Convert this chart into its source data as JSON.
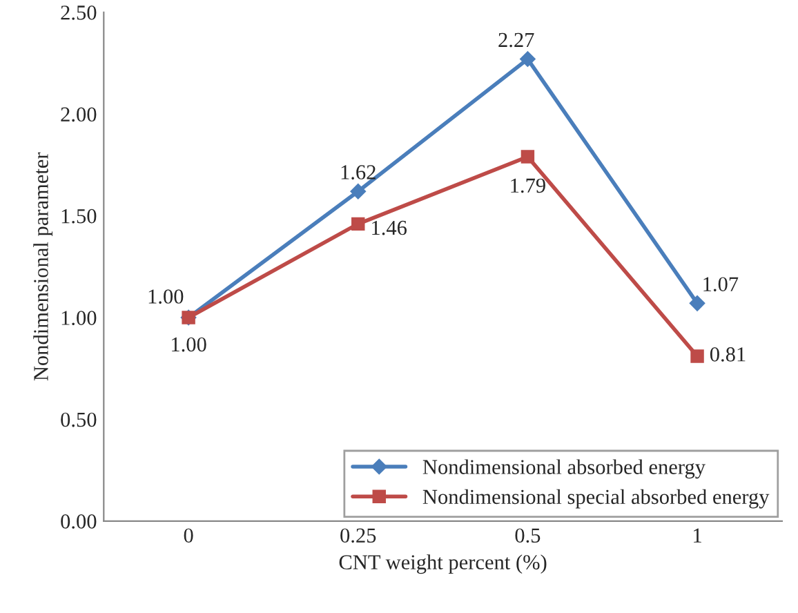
{
  "chart_data": {
    "type": "line",
    "xlabel": "CNT weight percent (%)",
    "ylabel": "Nondimensional parameter",
    "categories": [
      "0",
      "0.25",
      "0.5",
      "1"
    ],
    "series": [
      {
        "name": "Nondimensional absorbed energy",
        "color": "#4a7ebb",
        "marker": "diamond",
        "values": [
          1.0,
          1.62,
          2.27,
          1.07
        ],
        "value_labels": [
          "1.00",
          "1.62",
          "2.27",
          "1.07"
        ]
      },
      {
        "name": "Nondimensional special absorbed energy",
        "color": "#be4b48",
        "marker": "square",
        "values": [
          1.0,
          1.46,
          1.79,
          0.81
        ],
        "value_labels": [
          "1.00",
          "1.46",
          "1.79",
          "0.81"
        ]
      }
    ],
    "ylim": [
      0,
      2.5
    ],
    "yticks": [
      {
        "value": 0,
        "label": "0.00"
      },
      {
        "value": 0.5,
        "label": "0.50"
      },
      {
        "value": 1,
        "label": "1.00"
      },
      {
        "value": 1.5,
        "label": "1.50"
      },
      {
        "value": 2,
        "label": "2.00"
      },
      {
        "value": 2.5,
        "label": "2.50"
      }
    ],
    "legend": "bottom right",
    "grid": false,
    "line_style": "solid"
  }
}
